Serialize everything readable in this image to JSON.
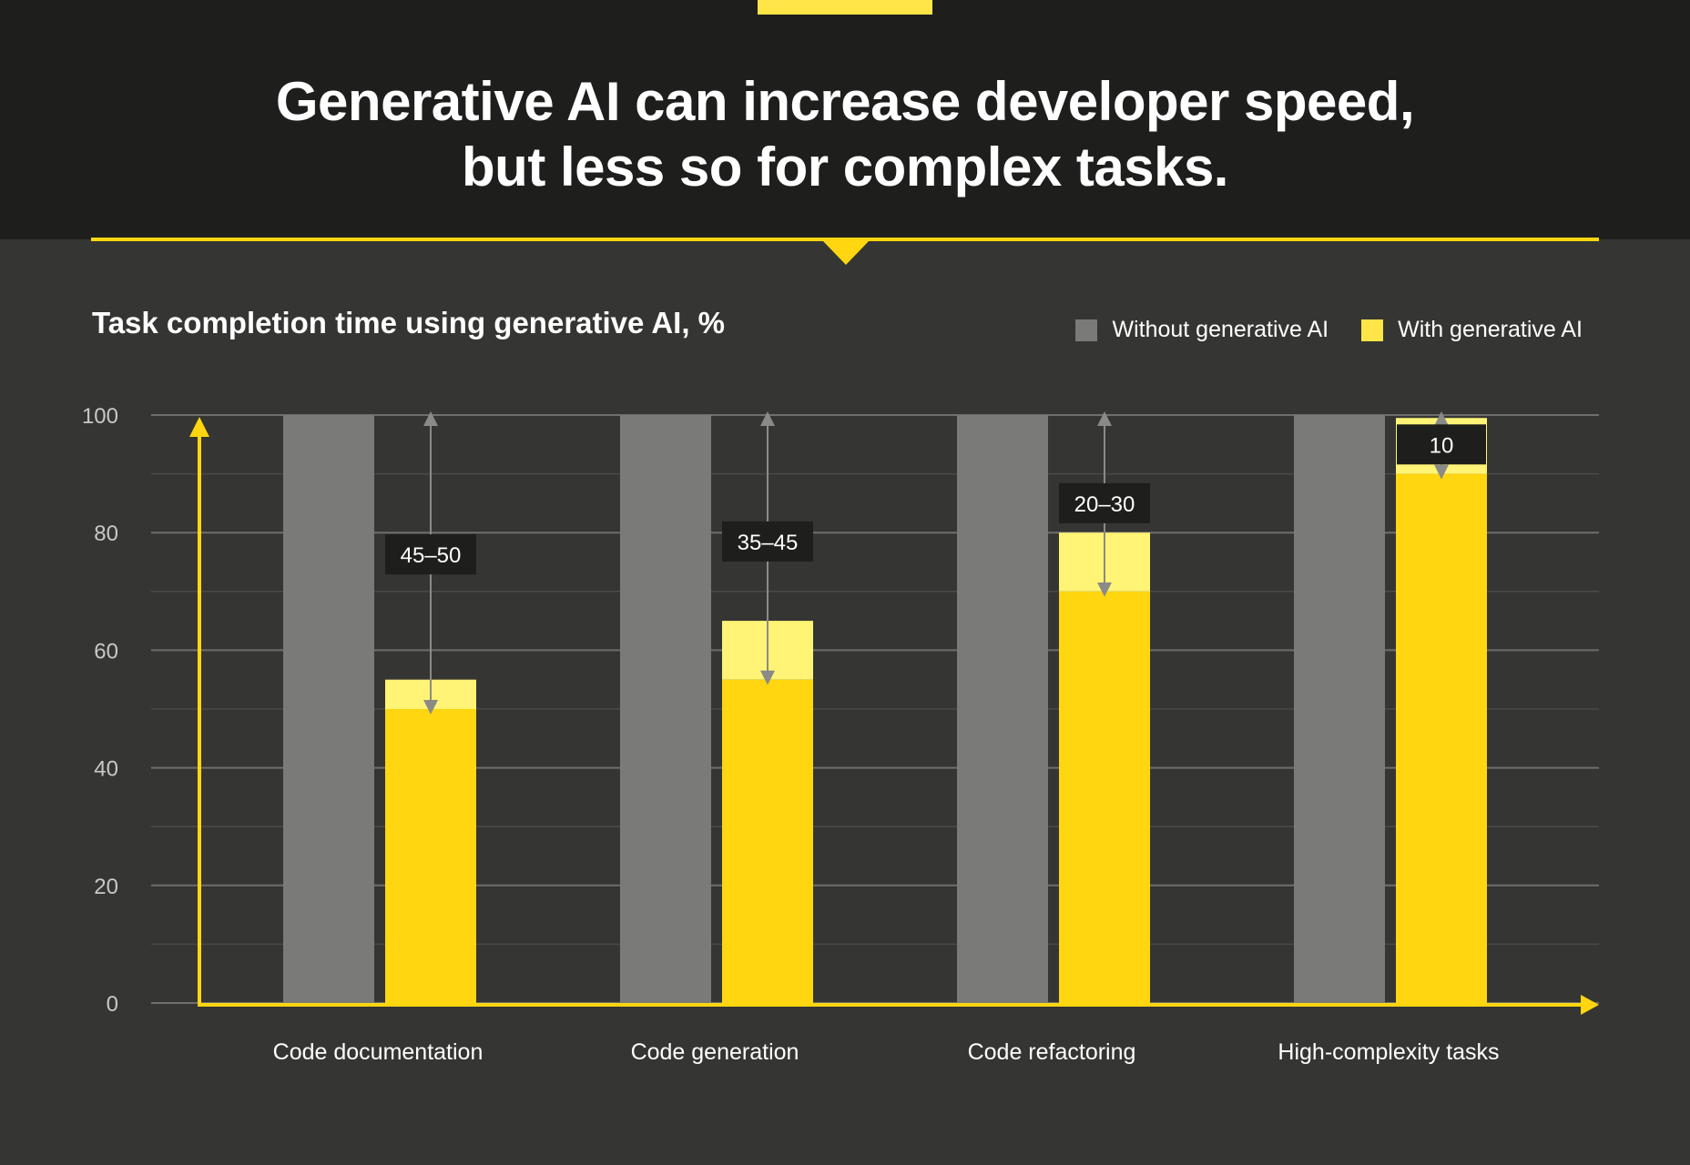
{
  "header": {
    "title_line1": "Generative AI can increase developer speed,",
    "title_line2": "but less so for complex tasks."
  },
  "chart_data": {
    "type": "bar",
    "title": "Task completion time using generative AI, %",
    "xlabel": "",
    "ylabel": "",
    "ylim": [
      0,
      100
    ],
    "yticks": [
      0,
      20,
      40,
      60,
      80,
      100
    ],
    "categories": [
      "Code documentation",
      "Code generation",
      "Code refactoring",
      "High-complexity tasks"
    ],
    "series": [
      {
        "name": "Without generative AI",
        "color": "#7a7a78",
        "values": [
          100,
          100,
          100,
          100
        ]
      },
      {
        "name": "With generative AI",
        "color": "#ffd60f",
        "range_color": "#fff475",
        "values_low": [
          50,
          55,
          70,
          90
        ],
        "values_high": [
          55,
          65,
          80,
          99.5
        ]
      }
    ],
    "annotations": [
      "45–50",
      "35–45",
      "20–30",
      "10"
    ],
    "grid": true,
    "legend_position": "top-right"
  },
  "colors": {
    "banner": "#1e1e1c",
    "background": "#353533",
    "accent": "#ffd60f",
    "accent_light": "#fff475",
    "gray_bar": "#7a7a78",
    "gridline": "#6e6e6c",
    "label_box": "#1e1e1c"
  }
}
